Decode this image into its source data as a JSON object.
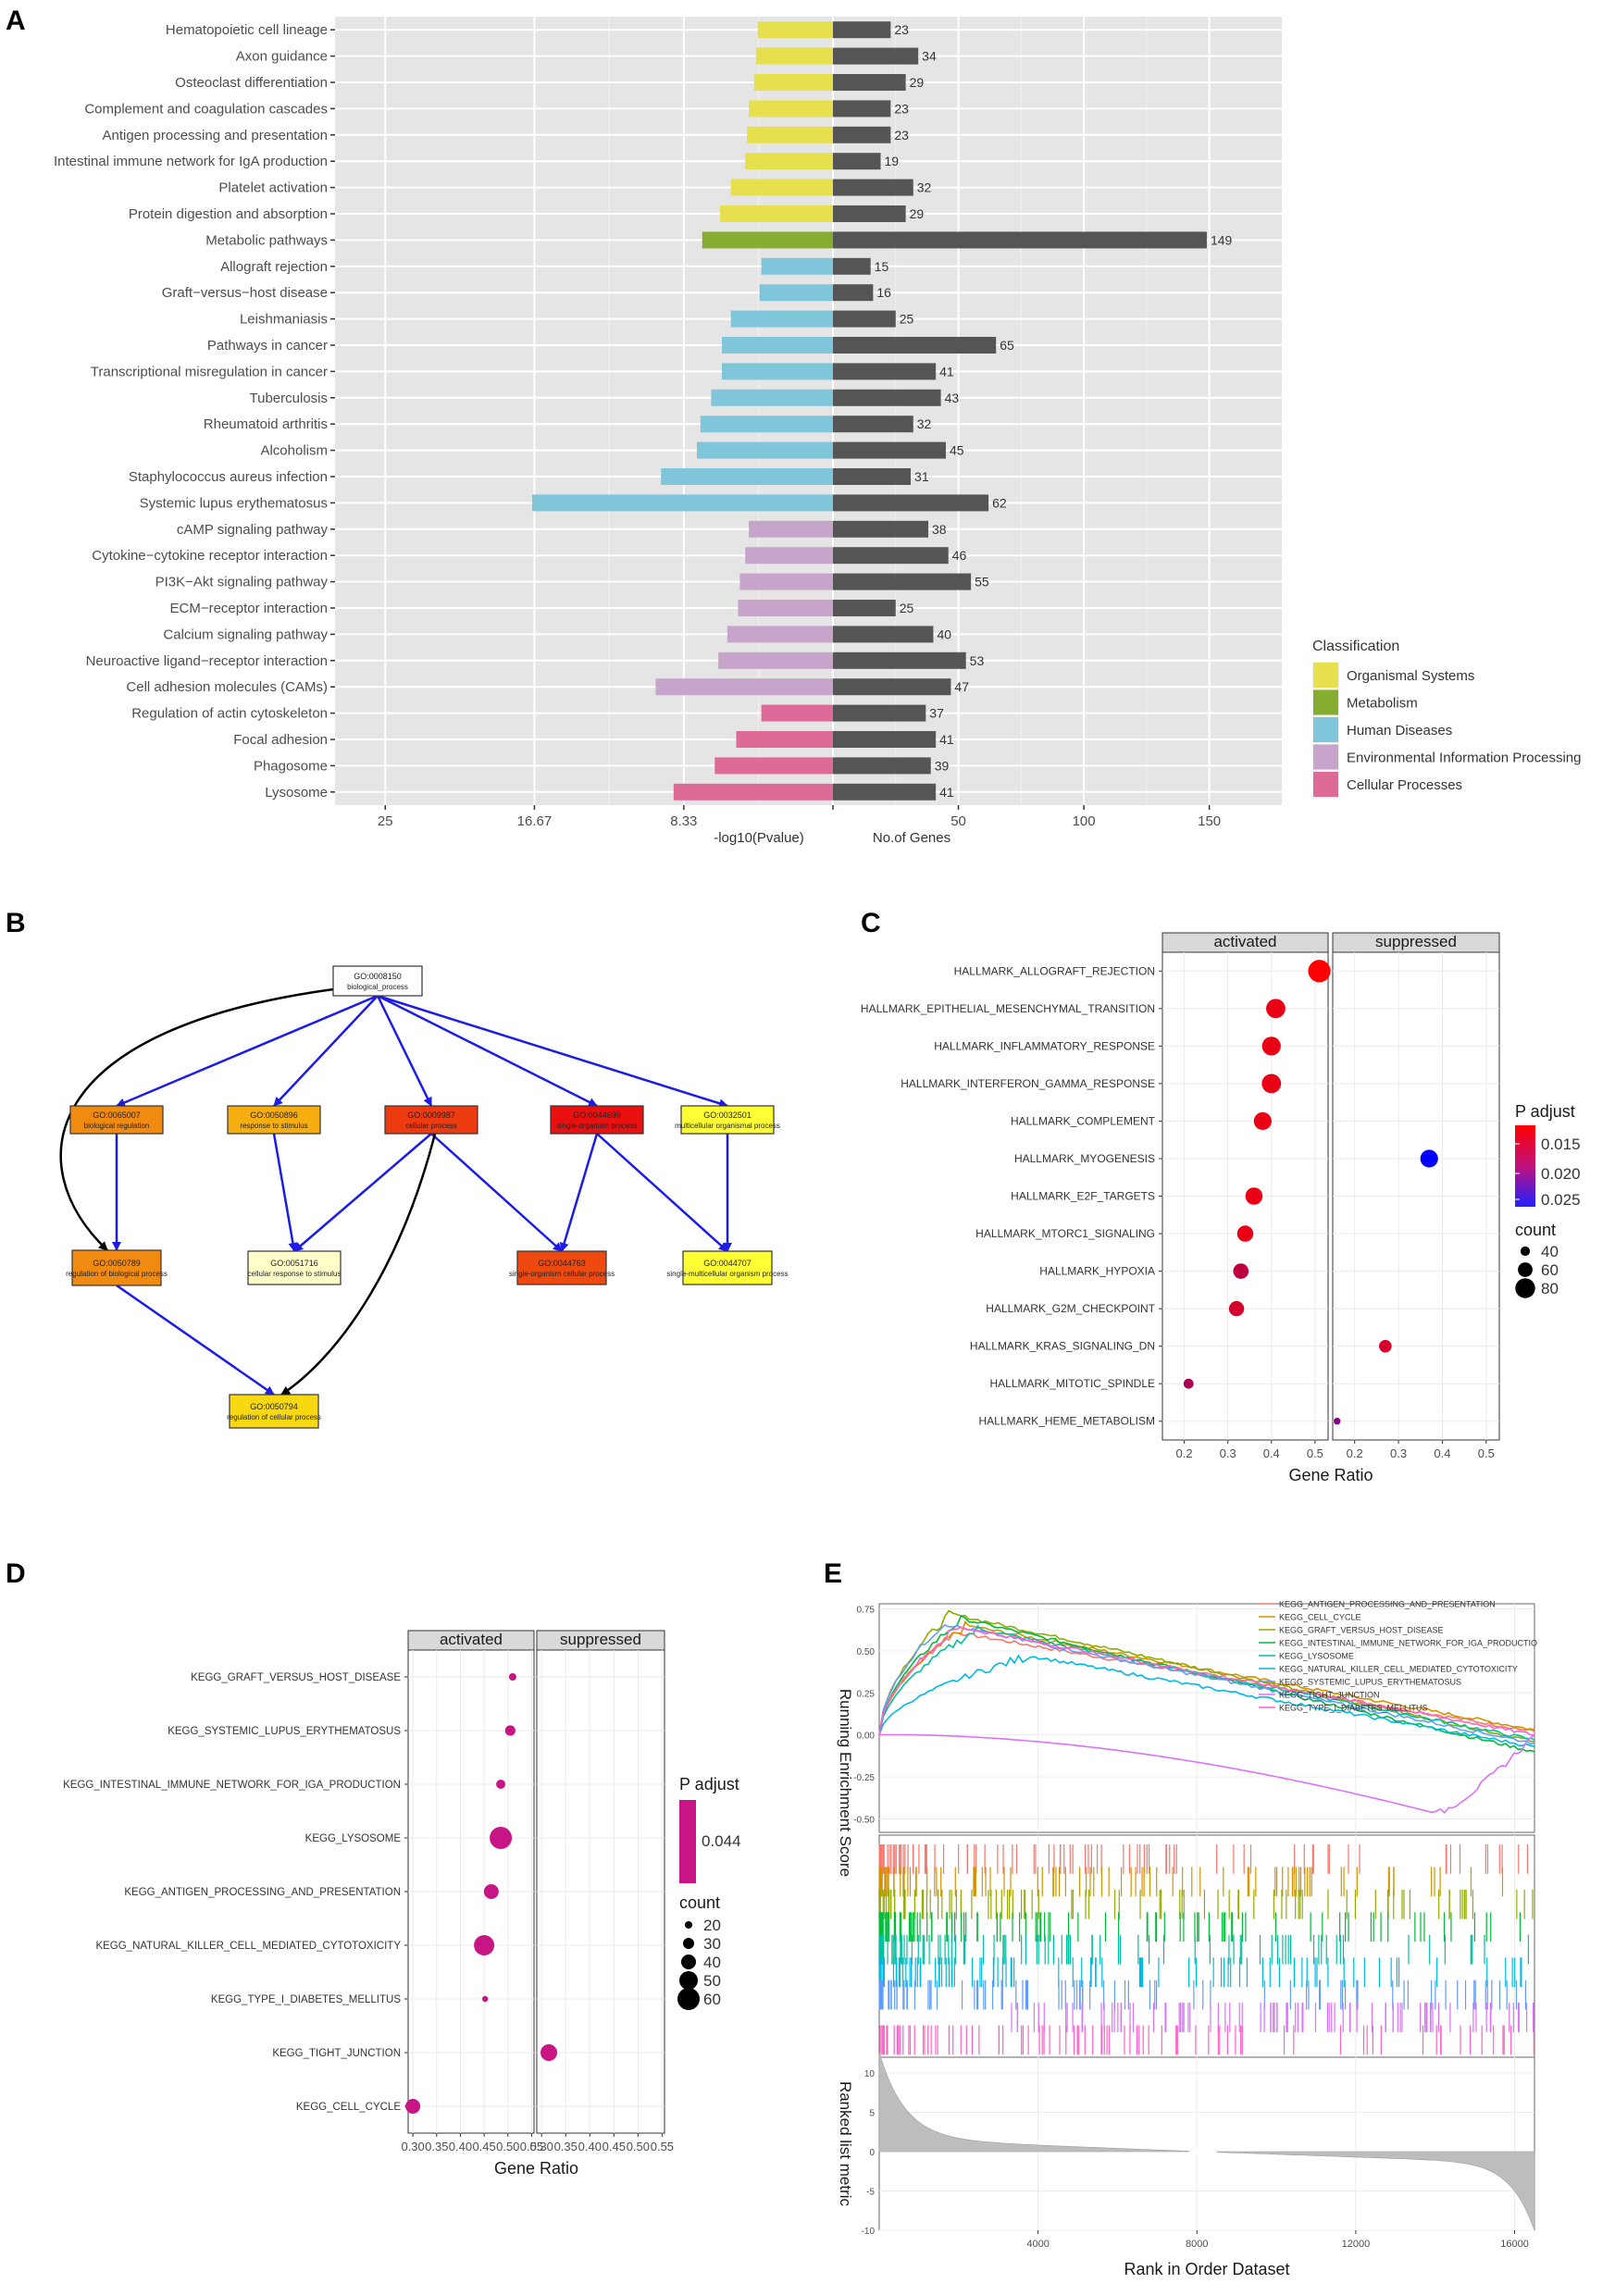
{
  "panel_labels": {
    "a": "A",
    "b": "B",
    "c": "C",
    "d": "D",
    "e": "E"
  },
  "chart_data": [
    {
      "panel": "A",
      "type": "bar",
      "orientation": "horizontal-diverging",
      "categories": [
        "Hematopoietic cell lineage",
        "Axon guidance",
        "Osteoclast differentiation",
        "Complement and coagulation cascades",
        "Antigen processing and presentation",
        "Intestinal immune network for IgA production",
        "Platelet activation",
        "Protein digestion and absorption",
        "Metabolic pathways",
        "Allograft rejection",
        "Graft−versus−host disease",
        "Leishmaniasis",
        "Pathways in cancer",
        "Transcriptional misregulation in cancer",
        "Tuberculosis",
        "Rheumatoid arthritis",
        "Alcoholism",
        "Staphylococcus aureus infection",
        "Systemic lupus erythematosus",
        "cAMP signaling pathway",
        "Cytokine−cytokine receptor interaction",
        "PI3K−Akt signaling pathway",
        "ECM−receptor interaction",
        "Calcium signaling pathway",
        "Neuroactive ligand−receptor interaction",
        "Cell adhesion molecules (CAMs)",
        "Regulation of actin cytoskeleton",
        "Focal adhesion",
        "Phagosome",
        "Lysosome"
      ],
      "classification": [
        "Organismal Systems",
        "Organismal Systems",
        "Organismal Systems",
        "Organismal Systems",
        "Organismal Systems",
        "Organismal Systems",
        "Organismal Systems",
        "Organismal Systems",
        "Metabolism",
        "Human Diseases",
        "Human Diseases",
        "Human Diseases",
        "Human Diseases",
        "Human Diseases",
        "Human Diseases",
        "Human Diseases",
        "Human Diseases",
        "Human Diseases",
        "Human Diseases",
        "Environmental Information Processing",
        "Environmental Information Processing",
        "Environmental Information Processing",
        "Environmental Information Processing",
        "Environmental Information Processing",
        "Environmental Information Processing",
        "Environmental Information Processing",
        "Cellular Processes",
        "Cellular Processes",
        "Cellular Processes",
        "Cellular Processes"
      ],
      "series": [
        {
          "name": "-log10(Pvalue)",
          "values": [
            4.2,
            4.3,
            4.4,
            4.7,
            4.8,
            4.9,
            5.7,
            6.3,
            7.3,
            4.0,
            4.1,
            5.7,
            6.2,
            6.2,
            6.8,
            7.4,
            7.6,
            9.6,
            16.8,
            4.7,
            4.9,
            5.2,
            5.3,
            5.9,
            6.4,
            9.9,
            4.0,
            5.4,
            6.6,
            8.9
          ]
        },
        {
          "name": "No.of Genes",
          "values": [
            23,
            34,
            29,
            23,
            23,
            19,
            32,
            29,
            149,
            15,
            16,
            25,
            65,
            41,
            43,
            32,
            45,
            31,
            62,
            38,
            46,
            55,
            25,
            40,
            53,
            47,
            37,
            41,
            39,
            41
          ]
        }
      ],
      "left_ticks": [
        "25",
        "16.67",
        "8.33"
      ],
      "right_ticks": [
        "50",
        "100",
        "150"
      ],
      "xlabel_left": "-log10(Pvalue)",
      "xlabel_right": "No.of Genes",
      "legend_title": "Classification",
      "legend": [
        {
          "name": "Organismal Systems",
          "color": "#e6e04e"
        },
        {
          "name": "Metabolism",
          "color": "#87ad30"
        },
        {
          "name": "Human Diseases",
          "color": "#80c6da"
        },
        {
          "name": "Environmental Information Processing",
          "color": "#c7a5cb"
        },
        {
          "name": "Cellular Processes",
          "color": "#de6b97"
        }
      ],
      "count_bar_color": "#555555",
      "panel_background": "#e5e5e5"
    },
    {
      "panel": "C",
      "type": "scatter",
      "facets": [
        "activated",
        "suppressed"
      ],
      "categories": [
        "HALLMARK_ALLOGRAFT_REJECTION",
        "HALLMARK_EPITHELIAL_MESENCHYMAL_TRANSITION",
        "HALLMARK_INFLAMMATORY_RESPONSE",
        "HALLMARK_INTERFERON_GAMMA_RESPONSE",
        "HALLMARK_COMPLEMENT",
        "HALLMARK_MYOGENESIS",
        "HALLMARK_E2F_TARGETS",
        "HALLMARK_MTORC1_SIGNALING",
        "HALLMARK_HYPOXIA",
        "HALLMARK_G2M_CHECKPOINT",
        "HALLMARK_KRAS_SIGNALING_DN",
        "HALLMARK_MITOTIC_SPINDLE",
        "HALLMARK_HEME_METABOLISM"
      ],
      "points": [
        {
          "term": "HALLMARK_ALLOGRAFT_REJECTION",
          "facet": "activated",
          "gene_ratio": 0.51,
          "count": 90,
          "p_adjust": 0.013
        },
        {
          "term": "HALLMARK_EPITHELIAL_MESENCHYMAL_TRANSITION",
          "facet": "activated",
          "gene_ratio": 0.41,
          "count": 78,
          "p_adjust": 0.014
        },
        {
          "term": "HALLMARK_INFLAMMATORY_RESPONSE",
          "facet": "activated",
          "gene_ratio": 0.4,
          "count": 76,
          "p_adjust": 0.014
        },
        {
          "term": "HALLMARK_INTERFERON_GAMMA_RESPONSE",
          "facet": "activated",
          "gene_ratio": 0.4,
          "count": 78,
          "p_adjust": 0.014
        },
        {
          "term": "HALLMARK_COMPLEMENT",
          "facet": "activated",
          "gene_ratio": 0.38,
          "count": 72,
          "p_adjust": 0.014
        },
        {
          "term": "HALLMARK_MYOGENESIS",
          "facet": "suppressed",
          "gene_ratio": 0.37,
          "count": 72,
          "p_adjust": 0.025
        },
        {
          "term": "HALLMARK_E2F_TARGETS",
          "facet": "activated",
          "gene_ratio": 0.36,
          "count": 70,
          "p_adjust": 0.014
        },
        {
          "term": "HALLMARK_MTORC1_SIGNALING",
          "facet": "activated",
          "gene_ratio": 0.34,
          "count": 66,
          "p_adjust": 0.014
        },
        {
          "term": "HALLMARK_HYPOXIA",
          "facet": "activated",
          "gene_ratio": 0.33,
          "count": 63,
          "p_adjust": 0.016
        },
        {
          "term": "HALLMARK_G2M_CHECKPOINT",
          "facet": "activated",
          "gene_ratio": 0.32,
          "count": 62,
          "p_adjust": 0.015
        },
        {
          "term": "HALLMARK_KRAS_SIGNALING_DN",
          "facet": "suppressed",
          "gene_ratio": 0.27,
          "count": 52,
          "p_adjust": 0.015
        },
        {
          "term": "HALLMARK_MITOTIC_SPINDLE",
          "facet": "activated",
          "gene_ratio": 0.21,
          "count": 42,
          "p_adjust": 0.017
        },
        {
          "term": "HALLMARK_HEME_METABOLISM",
          "facet": "suppressed",
          "gene_ratio": 0.16,
          "count": 30,
          "p_adjust": 0.019
        }
      ],
      "x_ticks": [
        "0.2",
        "0.3",
        "0.4",
        "0.5"
      ],
      "xlim": [
        0.15,
        0.53
      ],
      "xlabel": "Gene Ratio",
      "color_legend_title": "P adjust",
      "color_ticks": [
        "0.015",
        "0.020",
        "0.025"
      ],
      "size_legend_title": "count",
      "size_ticks": [
        "40",
        "60",
        "80"
      ]
    },
    {
      "panel": "D",
      "type": "scatter",
      "facets": [
        "activated",
        "suppressed"
      ],
      "categories": [
        "KEGG_GRAFT_VERSUS_HOST_DISEASE",
        "KEGG_SYSTEMIC_LUPUS_ERYTHEMATOSUS",
        "KEGG_INTESTINAL_IMMUNE_NETWORK_FOR_IGA_PRODUCTION",
        "KEGG_LYSOSOME",
        "KEGG_ANTIGEN_PROCESSING_AND_PRESENTATION",
        "KEGG_NATURAL_KILLER_CELL_MEDIATED_CYTOTOXICITY",
        "KEGG_TYPE_I_DIABETES_MELLITUS",
        "KEGG_TIGHT_JUNCTION",
        "KEGG_CELL_CYCLE"
      ],
      "points": [
        {
          "term": "KEGG_GRAFT_VERSUS_HOST_DISEASE",
          "facet": "activated",
          "gene_ratio": 0.51,
          "count": 20
        },
        {
          "term": "KEGG_SYSTEMIC_LUPUS_ERYTHEMATOSUS",
          "facet": "activated",
          "gene_ratio": 0.505,
          "count": 28
        },
        {
          "term": "KEGG_INTESTINAL_IMMUNE_NETWORK_FOR_IGA_PRODUCTION",
          "facet": "activated",
          "gene_ratio": 0.485,
          "count": 25
        },
        {
          "term": "KEGG_LYSOSOME",
          "facet": "activated",
          "gene_ratio": 0.485,
          "count": 60
        },
        {
          "term": "KEGG_ANTIGEN_PROCESSING_AND_PRESENTATION",
          "facet": "activated",
          "gene_ratio": 0.465,
          "count": 40
        },
        {
          "term": "KEGG_NATURAL_KILLER_CELL_MEDIATED_CYTOTOXICITY",
          "facet": "activated",
          "gene_ratio": 0.45,
          "count": 55
        },
        {
          "term": "KEGG_TYPE_I_DIABETES_MELLITUS",
          "facet": "activated",
          "gene_ratio": 0.452,
          "count": 16
        },
        {
          "term": "KEGG_TIGHT_JUNCTION",
          "facet": "suppressed",
          "gene_ratio": 0.315,
          "count": 45
        },
        {
          "term": "KEGG_CELL_CYCLE",
          "facet": "activated",
          "gene_ratio": 0.3,
          "count": 40
        }
      ],
      "x_ticks": [
        "0.30",
        "0.35",
        "0.40",
        "0.45",
        "0.50",
        "0.55"
      ],
      "xlim": [
        0.29,
        0.555
      ],
      "xlabel": "Gene Ratio",
      "color_legend_title": "P adjust",
      "color_ticks": [
        "0.044"
      ],
      "size_legend_title": "count",
      "size_ticks": [
        "20",
        "30",
        "40",
        "50",
        "60"
      ],
      "point_color": "#c71585"
    },
    {
      "panel": "E",
      "type": "line",
      "title": "",
      "ylabel_top": "Running Enrichment Score",
      "ylabel_bottom": "Ranked list metric",
      "xlabel": "Rank in Order Dataset",
      "x_ticks": [
        "4000",
        "8000",
        "12000",
        "16000"
      ],
      "x_range": [
        0,
        16500
      ],
      "es_ticks": [
        "0.75",
        "0.50",
        "0.25",
        "0.00",
        "-0.25",
        "-0.50"
      ],
      "es_range": [
        -0.58,
        0.78
      ],
      "metric_ticks": [
        "10",
        "5",
        "0",
        "-5",
        "-10"
      ],
      "metric_range": [
        -10,
        12
      ],
      "series": [
        {
          "name": "KEGG_ANTIGEN_PROCESSING_AND_PRESENTATION",
          "color": "#f8766d",
          "peak_rank": 1900,
          "peak_es": 0.61,
          "end_es": 0.02
        },
        {
          "name": "KEGG_CELL_CYCLE",
          "color": "#d39200",
          "peak_rank": 2200,
          "peak_es": 0.65,
          "end_es": 0.03
        },
        {
          "name": "KEGG_GRAFT_VERSUS_HOST_DISEASE",
          "color": "#93aa00",
          "peak_rank": 1800,
          "peak_es": 0.72,
          "end_es": -0.04
        },
        {
          "name": "KEGG_INTESTINAL_IMMUNE_NETWORK_FOR_IGA_PRODUCTIO",
          "color": "#00ba38",
          "peak_rank": 2100,
          "peak_es": 0.69,
          "end_es": -0.1
        },
        {
          "name": "KEGG_LYSOSOME",
          "color": "#00c19f",
          "peak_rank": 2500,
          "peak_es": 0.63,
          "end_es": -0.03
        },
        {
          "name": "KEGG_NATURAL_KILLER_CELL_MEDIATED_CYTOTOXICITY",
          "color": "#00b9e3",
          "peak_rank": 3800,
          "peak_es": 0.47,
          "end_es": -0.07
        },
        {
          "name": "KEGG_SYSTEMIC_LUPUS_ERYTHEMATOSUS",
          "color": "#619cff",
          "peak_rank": 1600,
          "peak_es": 0.66,
          "end_es": -0.05
        },
        {
          "name": "KEGG_TIGHT_JUNCTION",
          "color": "#db72fb",
          "peak_rank": 14000,
          "peak_es": -0.47,
          "end_es": 0.0
        },
        {
          "name": "KEGG_TYPE_I_DIABETES_MELLITUS",
          "color": "#ff61c3",
          "peak_rank": 2000,
          "peak_es": 0.64,
          "end_es": 0.0
        }
      ]
    }
  ],
  "go_diagram": {
    "nodes": [
      {
        "id": "n0",
        "go": "GO:0008150",
        "label": "biological_process",
        "color": "#ffffff"
      },
      {
        "id": "n1",
        "go": "GO:0065007",
        "label": "biological regulation",
        "color": "#f08a10"
      },
      {
        "id": "n2",
        "go": "GO:0050896",
        "label": "response to stimulus",
        "color": "#f5ad10"
      },
      {
        "id": "n3",
        "go": "GO:0009987",
        "label": "cellular process",
        "color": "#ee3a10"
      },
      {
        "id": "n4",
        "go": "GO:0044699",
        "label": "single-organism process",
        "color": "#ea1010"
      },
      {
        "id": "n5",
        "go": "GO:0032501",
        "label": "multicellular organismal process",
        "color": "#ffff33"
      },
      {
        "id": "n6",
        "go": "GO:0050789",
        "label": "regulation of biological process",
        "color": "#f08a10"
      },
      {
        "id": "n7",
        "go": "GO:0051716",
        "label": "cellular response to stimulus",
        "color": "#ffffc8"
      },
      {
        "id": "n8",
        "go": "GO:0044763",
        "label": "single-organism cellular process",
        "color": "#ee4a10"
      },
      {
        "id": "n9",
        "go": "GO:0044707",
        "label": "single-multicellular organism process",
        "color": "#ffff33"
      },
      {
        "id": "n10",
        "go": "GO:0050794",
        "label": "regulation of cellular process",
        "color": "#f8d810"
      }
    ],
    "edges": [
      {
        "from": "n0",
        "to": "n1",
        "kind": "is_a"
      },
      {
        "from": "n0",
        "to": "n2",
        "kind": "is_a"
      },
      {
        "from": "n0",
        "to": "n3",
        "kind": "is_a"
      },
      {
        "from": "n0",
        "to": "n4",
        "kind": "is_a"
      },
      {
        "from": "n0",
        "to": "n5",
        "kind": "is_a"
      },
      {
        "from": "n0",
        "to": "n6",
        "kind": "regulates"
      },
      {
        "from": "n1",
        "to": "n6",
        "kind": "is_a"
      },
      {
        "from": "n2",
        "to": "n7",
        "kind": "is_a"
      },
      {
        "from": "n3",
        "to": "n7",
        "kind": "is_a"
      },
      {
        "from": "n3",
        "to": "n8",
        "kind": "is_a"
      },
      {
        "from": "n3",
        "to": "n10",
        "kind": "regulates"
      },
      {
        "from": "n4",
        "to": "n8",
        "kind": "is_a"
      },
      {
        "from": "n4",
        "to": "n9",
        "kind": "is_a"
      },
      {
        "from": "n5",
        "to": "n9",
        "kind": "is_a"
      },
      {
        "from": "n6",
        "to": "n10",
        "kind": "is_a"
      }
    ],
    "edge_colors": {
      "is_a": "#1c1ce8",
      "regulates": "#000000"
    }
  }
}
